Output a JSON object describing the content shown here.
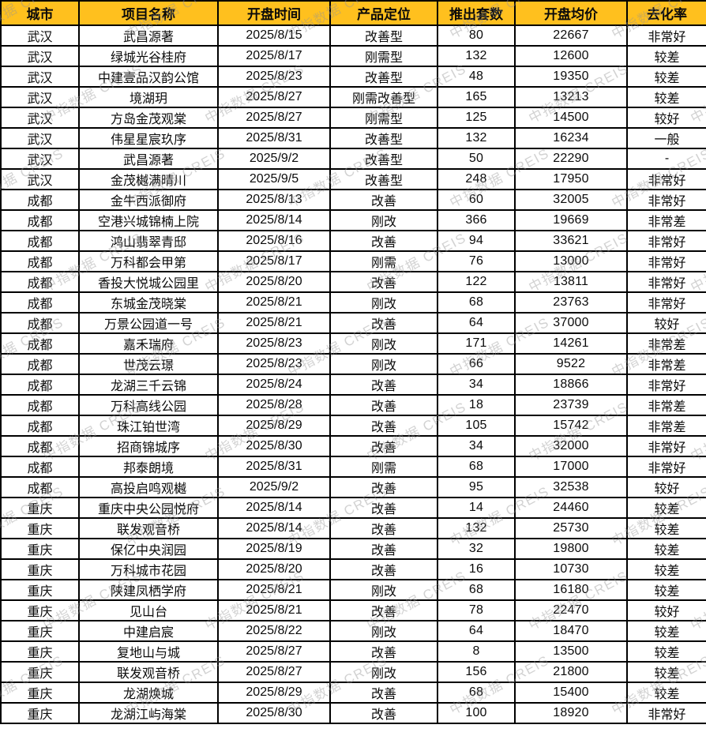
{
  "colors": {
    "header_bg": "#ffc01e",
    "grid_border": "#000000",
    "text": "#0a0a0a",
    "watermark_gray": "#949494"
  },
  "watermark": {
    "text": "中指数据 CREIS"
  },
  "table": {
    "columns": [
      {
        "label": "城市"
      },
      {
        "label": "项目名称"
      },
      {
        "label": "开盘时间"
      },
      {
        "label": "产品定位"
      },
      {
        "label": "推出套数"
      },
      {
        "label": "开盘均价"
      },
      {
        "label": "去化率"
      }
    ],
    "rows": [
      [
        "武汉",
        "武昌源著",
        "2025/8/15",
        "改善型",
        "80",
        "22667",
        "非常好"
      ],
      [
        "武汉",
        "绿城光谷桂府",
        "2025/8/17",
        "刚需型",
        "132",
        "12600",
        "较差"
      ],
      [
        "武汉",
        "中建壹品汉韵公馆",
        "2025/8/23",
        "改善型",
        "48",
        "19350",
        "较差"
      ],
      [
        "武汉",
        "境湖玥",
        "2025/8/27",
        "刚需改善型",
        "165",
        "13213",
        "较差"
      ],
      [
        "武汉",
        "方岛金茂观棠",
        "2025/8/27",
        "刚需型",
        "125",
        "14500",
        "较好"
      ],
      [
        "武汉",
        "伟星星宸玖序",
        "2025/8/31",
        "改善型",
        "132",
        "16234",
        "一般"
      ],
      [
        "武汉",
        "武昌源著",
        "2025/9/2",
        "改善型",
        "50",
        "22290",
        "-"
      ],
      [
        "武汉",
        "金茂樾满晴川",
        "2025/9/5",
        "改善型",
        "248",
        "17950",
        "非常好"
      ],
      [
        "成都",
        "金牛西派御府",
        "2025/8/13",
        "改善",
        "60",
        "32005",
        "非常好"
      ],
      [
        "成都",
        "空港兴城锦楠上院",
        "2025/8/14",
        "刚改",
        "366",
        "19669",
        "非常差"
      ],
      [
        "成都",
        "鸿山翡翠青邸",
        "2025/8/16",
        "改善",
        "94",
        "33621",
        "非常好"
      ],
      [
        "成都",
        "万科都会甲第",
        "2025/8/17",
        "刚需",
        "76",
        "13000",
        "非常好"
      ],
      [
        "成都",
        "香投大悦城公园里",
        "2025/8/20",
        "改善",
        "122",
        "13811",
        "非常好"
      ],
      [
        "成都",
        "东城金茂晓棠",
        "2025/8/21",
        "刚改",
        "68",
        "23763",
        "非常好"
      ],
      [
        "成都",
        "万景公园道一号",
        "2025/8/21",
        "改善",
        "64",
        "37000",
        "较好"
      ],
      [
        "成都",
        "嘉禾瑞府",
        "2025/8/23",
        "刚改",
        "171",
        "14261",
        "非常差"
      ],
      [
        "成都",
        "世茂云璟",
        "2025/8/23",
        "刚改",
        "66",
        "9522",
        "非常差"
      ],
      [
        "成都",
        "龙湖三千云锦",
        "2025/8/24",
        "改善",
        "34",
        "18866",
        "非常好"
      ],
      [
        "成都",
        "万科高线公园",
        "2025/8/28",
        "改善",
        "18",
        "23739",
        "非常差"
      ],
      [
        "成都",
        "珠江铂世湾",
        "2025/8/29",
        "改善",
        "105",
        "15742",
        "非常差"
      ],
      [
        "成都",
        "招商锦城序",
        "2025/8/30",
        "改善",
        "34",
        "32000",
        "非常好"
      ],
      [
        "成都",
        "邦泰朗境",
        "2025/8/31",
        "刚需",
        "68",
        "17000",
        "非常好"
      ],
      [
        "成都",
        "高投启鸣观樾",
        "2025/9/2",
        "改善",
        "95",
        "32538",
        "较好"
      ],
      [
        "重庆",
        "重庆中央公园悦府",
        "2025/8/14",
        "改善",
        "14",
        "24460",
        "较差"
      ],
      [
        "重庆",
        "联发观音桥",
        "2025/8/14",
        "改善",
        "132",
        "25730",
        "较差"
      ],
      [
        "重庆",
        "保亿中央润园",
        "2025/8/19",
        "改善",
        "32",
        "19800",
        "较差"
      ],
      [
        "重庆",
        "万科城市花园",
        "2025/8/20",
        "改善",
        "16",
        "10730",
        "较差"
      ],
      [
        "重庆",
        "陕建凤栖学府",
        "2025/8/21",
        "刚改",
        "68",
        "16180",
        "较差"
      ],
      [
        "重庆",
        "见山台",
        "2025/8/21",
        "改善",
        "78",
        "22470",
        "较好"
      ],
      [
        "重庆",
        "中建启宸",
        "2025/8/22",
        "刚改",
        "64",
        "18470",
        "较差"
      ],
      [
        "重庆",
        "复地山与城",
        "2025/8/27",
        "改善",
        "8",
        "13500",
        "较差"
      ],
      [
        "重庆",
        "联发观音桥",
        "2025/8/27",
        "刚改",
        "156",
        "21800",
        "较差"
      ],
      [
        "重庆",
        "龙湖焕城",
        "2025/8/29",
        "改善",
        "68",
        "15400",
        "较差"
      ],
      [
        "重庆",
        "龙湖江屿海棠",
        "2025/8/30",
        "改善",
        "100",
        "18920",
        "非常好"
      ]
    ]
  }
}
